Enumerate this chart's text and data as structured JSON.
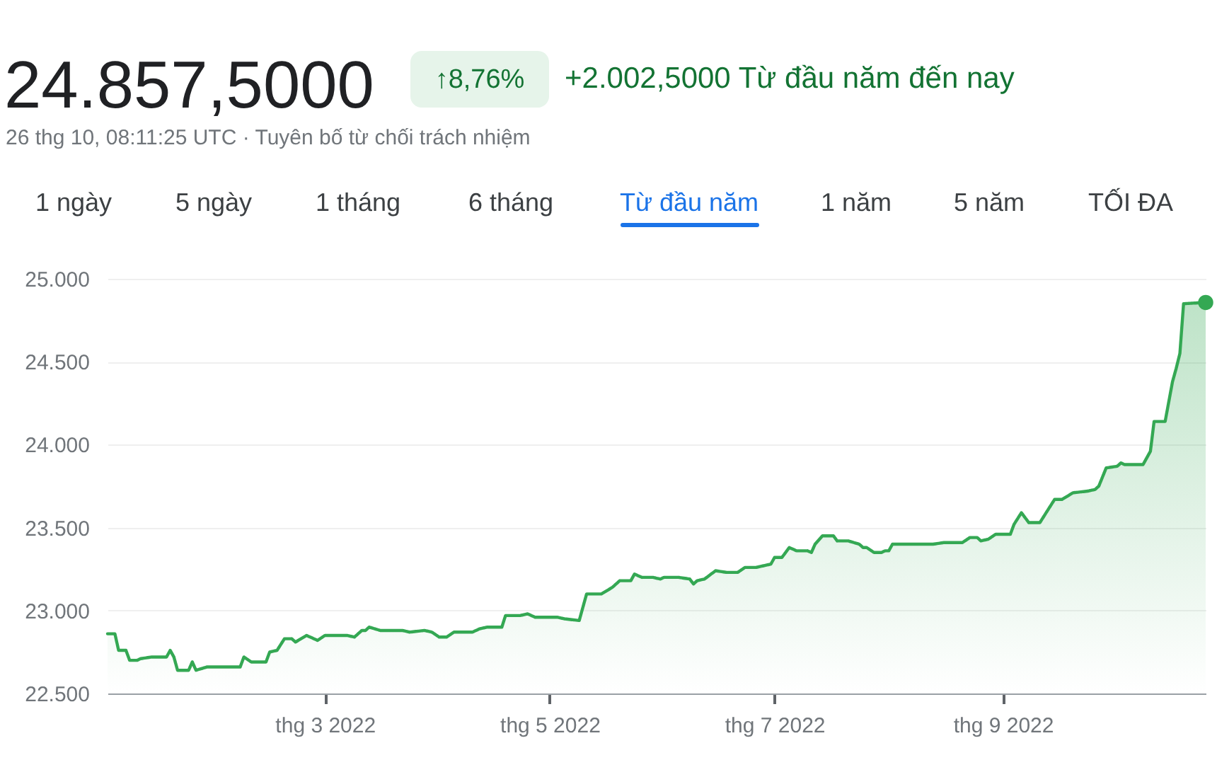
{
  "chart_data": {
    "type": "area",
    "title": "24.857,5000",
    "subtitle": "26 thg 10, 08:11:25 UTC · Tuyên bố từ chối trách nhiệm",
    "annotations": [
      "↑8,76%",
      "+2.002,5000 Từ đầu năm đến nay",
      "1 ngày",
      "5 ngày",
      "1 tháng",
      "6 tháng",
      "Từ đầu năm",
      "1 năm",
      "5 năm",
      "TỐI ĐA"
    ],
    "x": [
      "2022-01-01",
      "2022-01-03",
      "2022-01-04",
      "2022-01-06",
      "2022-01-07",
      "2022-01-09",
      "2022-01-10",
      "2022-01-13",
      "2022-01-17",
      "2022-01-18",
      "2022-01-19",
      "2022-01-20",
      "2022-01-23",
      "2022-01-24",
      "2022-01-25",
      "2022-01-28",
      "2022-02-06",
      "2022-02-07",
      "2022-02-09",
      "2022-02-13",
      "2022-02-14",
      "2022-02-16",
      "2022-02-18",
      "2022-02-20",
      "2022-02-21",
      "2022-02-24",
      "2022-02-25",
      "2022-02-27",
      "2022-03-01",
      "2022-03-05",
      "2022-03-07",
      "2022-03-09",
      "2022-03-11",
      "2022-03-12",
      "2022-03-13",
      "2022-03-16",
      "2022-03-20",
      "2022-03-22",
      "2022-03-24",
      "2022-03-28",
      "2022-03-30",
      "2022-04-01",
      "2022-04-03",
      "2022-04-05",
      "2022-04-10",
      "2022-04-12",
      "2022-04-14",
      "2022-04-18",
      "2022-04-19",
      "2022-04-23",
      "2022-04-25",
      "2022-04-27",
      "2022-05-03",
      "2022-05-05",
      "2022-05-09",
      "2022-05-11",
      "2022-05-15",
      "2022-05-18",
      "2022-05-20",
      "2022-05-23",
      "2022-05-24",
      "2022-05-26",
      "2022-05-29",
      "2022-05-31",
      "2022-06-01",
      "2022-06-05",
      "2022-06-08",
      "2022-06-09",
      "2022-06-10",
      "2022-06-12",
      "2022-06-15",
      "2022-06-18",
      "2022-06-21",
      "2022-06-23",
      "2022-06-26",
      "2022-06-28",
      "2022-06-30",
      "2022-07-01",
      "2022-07-03",
      "2022-07-05",
      "2022-07-07",
      "2022-07-10",
      "2022-07-11",
      "2022-07-12",
      "2022-07-14",
      "2022-07-17",
      "2022-07-18",
      "2022-07-21",
      "2022-07-24",
      "2022-07-25",
      "2022-07-26",
      "2022-07-28",
      "2022-07-30",
      "2022-07-31",
      "2022-08-01",
      "2022-08-02",
      "2022-08-09",
      "2022-08-13",
      "2022-08-16",
      "2022-08-21",
      "2022-08-23",
      "2022-08-25",
      "2022-08-26",
      "2022-08-28",
      "2022-08-30",
      "2022-09-03",
      "2022-09-04",
      "2022-09-06",
      "2022-09-08",
      "2022-09-11",
      "2022-09-13",
      "2022-09-15",
      "2022-09-17",
      "2022-09-20",
      "2022-09-24",
      "2022-09-26",
      "2022-09-27",
      "2022-09-29",
      "2022-10-02",
      "2022-10-03",
      "2022-10-04",
      "2022-10-09",
      "2022-10-11",
      "2022-10-12",
      "2022-10-15",
      "2022-10-17",
      "2022-10-18",
      "2022-10-19",
      "2022-10-20",
      "2022-10-26"
    ],
    "series": [
      {
        "color": "#34a853",
        "values": [
          22860,
          22860,
          22760,
          22760,
          22700,
          22700,
          22710,
          22720,
          22720,
          22760,
          22720,
          22640,
          22640,
          22690,
          22640,
          22660,
          22660,
          22720,
          22690,
          22690,
          22750,
          22760,
          22830,
          22830,
          22810,
          22850,
          22840,
          22820,
          22850,
          22850,
          22850,
          22840,
          22880,
          22880,
          22900,
          22880,
          22880,
          22880,
          22870,
          22880,
          22870,
          22840,
          22840,
          22870,
          22870,
          22890,
          22900,
          22900,
          22970,
          22970,
          22980,
          22960,
          22960,
          22950,
          22940,
          23100,
          23100,
          23140,
          23180,
          23180,
          23220,
          23200,
          23200,
          23190,
          23200,
          23200,
          23190,
          23160,
          23180,
          23190,
          23240,
          23230,
          23230,
          23260,
          23260,
          23270,
          23280,
          23320,
          23320,
          23380,
          23360,
          23360,
          23350,
          23400,
          23450,
          23450,
          23420,
          23420,
          23400,
          23380,
          23380,
          23350,
          23350,
          23360,
          23360,
          23400,
          23400,
          23400,
          23410,
          23410,
          23440,
          23440,
          23420,
          23430,
          23460,
          23460,
          23520,
          23590,
          23530,
          23530,
          23600,
          23670,
          23670,
          23710,
          23720,
          23730,
          23750,
          23860,
          23870,
          23890,
          23880,
          23880,
          23960,
          24140,
          24140,
          24380,
          24460,
          24550,
          24850,
          24857.5
        ]
      }
    ],
    "xlim": [
      "2022-01-01",
      "2022-10-26"
    ],
    "xticks": [
      {
        "value": "2022-03-01",
        "label": "thg 3 2022"
      },
      {
        "value": "2022-05-01",
        "label": "thg 5 2022"
      },
      {
        "value": "2022-07-01",
        "label": "thg 7 2022"
      },
      {
        "value": "2022-09-01",
        "label": "thg 9 2022"
      }
    ],
    "ylim": [
      22500,
      25000
    ],
    "yticks": [
      {
        "value": 22500,
        "label": "22.500"
      },
      {
        "value": 23000,
        "label": "23.000"
      },
      {
        "value": 23500,
        "label": "23.500"
      },
      {
        "value": 24000,
        "label": "24.000"
      },
      {
        "value": 24500,
        "label": "24.500"
      },
      {
        "value": 25000,
        "label": "25.000"
      }
    ],
    "grid": "y"
  }
}
